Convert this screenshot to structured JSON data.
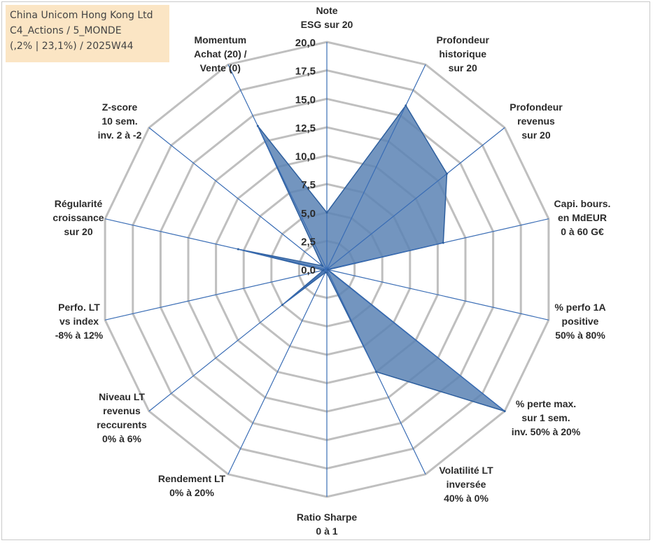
{
  "title_box": {
    "line1": "China Unicom Hong Kong Ltd",
    "line2": "C4_Actions / 5_MONDE",
    "line3": "(,2% | 23,1%) / 2025W44"
  },
  "colors": {
    "fill": "#5a82b4",
    "stroke": "#2e5f9e",
    "grid": "#bfbfbf",
    "spoke": "#3a6db5",
    "title_bg": "#fbe5c4"
  },
  "chart_data": {
    "type": "radar",
    "rmin": 0,
    "rmax": 20,
    "tick_labels": [
      "0,0",
      "2,5",
      "5,0",
      "7,5",
      "10,0",
      "12,5",
      "15,0",
      "17,5",
      "20,0"
    ],
    "axes": [
      {
        "label": [
          "Note",
          "ESG sur 20"
        ],
        "value": 5.0
      },
      {
        "label": [
          "Profondeur",
          "historique",
          "sur 20"
        ],
        "value": 16.0
      },
      {
        "label": [
          "Profondeur",
          "revenus",
          "sur 20"
        ],
        "value": 13.5
      },
      {
        "label": [
          "Capi. bours.",
          "en MdEUR",
          "0 à 60 G€"
        ],
        "value": 10.5
      },
      {
        "label": [
          "% perfo 1A",
          "positive",
          "50% à 80%"
        ],
        "value": 0.1
      },
      {
        "label": [
          "% perte max.",
          "sur 1 sem.",
          "inv. 50% à 20%"
        ],
        "value": 20.0
      },
      {
        "label": [
          "Volatilité LT",
          "inversée",
          "40% à 0%"
        ],
        "value": 10.0
      },
      {
        "label": [
          "Ratio Sharpe",
          "0 à 1"
        ],
        "value": 0.3
      },
      {
        "label": [
          "Rendement LT",
          "0% à 20%"
        ],
        "value": 0.3
      },
      {
        "label": [
          "Niveau LT",
          "revenus",
          "reccurents",
          "0% à 6%"
        ],
        "value": 5.0
      },
      {
        "label": [
          "Perfo. LT",
          "vs index",
          "-8% à 12%"
        ],
        "value": 0.3
      },
      {
        "label": [
          "Régularité",
          "croissance",
          "sur 20"
        ],
        "value": 8.0
      },
      {
        "label": [
          "Z-score",
          "10 sem.",
          "inv. 2 à -2"
        ],
        "value": 0.5
      },
      {
        "label": [
          "Momentum",
          "Achat (20) /",
          "Vente (0)"
        ],
        "value": 14.0
      }
    ]
  }
}
